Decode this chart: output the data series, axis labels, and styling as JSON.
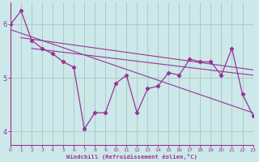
{
  "line_main": {
    "x": [
      0,
      1,
      2,
      3,
      4,
      5,
      6,
      7,
      8,
      9,
      10,
      11,
      12,
      13,
      14,
      15,
      16,
      17,
      18,
      19,
      20,
      21,
      22,
      23
    ],
    "y": [
      6.0,
      6.25,
      5.7,
      5.55,
      5.45,
      5.3,
      5.2,
      4.05,
      4.35,
      4.35,
      4.9,
      5.05,
      4.35,
      4.8,
      4.85,
      5.1,
      5.05,
      5.35,
      5.3,
      5.3,
      5.05,
      5.55,
      4.7,
      4.3
    ]
  },
  "line_reg1": {
    "x": [
      0,
      23
    ],
    "y": [
      5.9,
      4.35
    ]
  },
  "line_reg2": {
    "x": [
      1,
      23
    ],
    "y": [
      5.75,
      5.15
    ]
  },
  "line_reg3": {
    "x": [
      2,
      23
    ],
    "y": [
      5.55,
      5.05
    ]
  },
  "color": "#993399",
  "bg_color": "#cce8e8",
  "grid_color": "#aacccc",
  "xlabel": "Windchill (Refroidissement éolien,°C)",
  "xlim": [
    0,
    23
  ],
  "ylim": [
    3.75,
    6.4
  ],
  "yticks": [
    4,
    5,
    6
  ],
  "xticks": [
    0,
    1,
    2,
    3,
    4,
    5,
    6,
    7,
    8,
    9,
    10,
    11,
    12,
    13,
    14,
    15,
    16,
    17,
    18,
    19,
    20,
    21,
    22,
    23
  ]
}
